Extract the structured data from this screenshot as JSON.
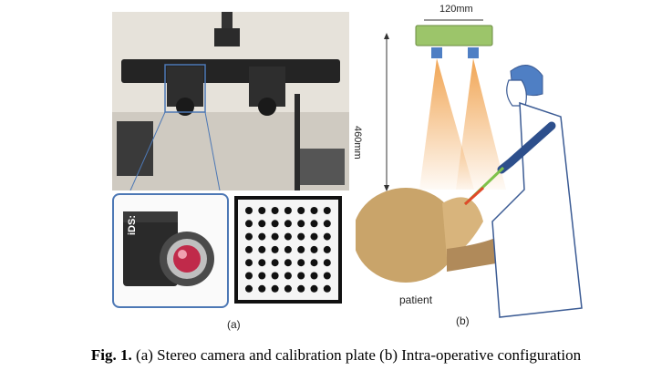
{
  "figure": {
    "panel_a_label": "(a)",
    "panel_b_label": "(b)",
    "camera_brand": "iDS:",
    "baseline_label": "120mm",
    "height_label": "460mm",
    "patient_label": "patient",
    "caption_prefix": "Fig. 1.",
    "caption_text": " (a) Stereo camera and calibration plate (b) Intra-operative configuration"
  },
  "colors": {
    "inset_border": "#4d78b5",
    "camera_bar": "#9cc56a",
    "light_cone": "#f0a04a",
    "surgeon_outline": "#3b5b94",
    "instrument": "#2d4f8c"
  }
}
